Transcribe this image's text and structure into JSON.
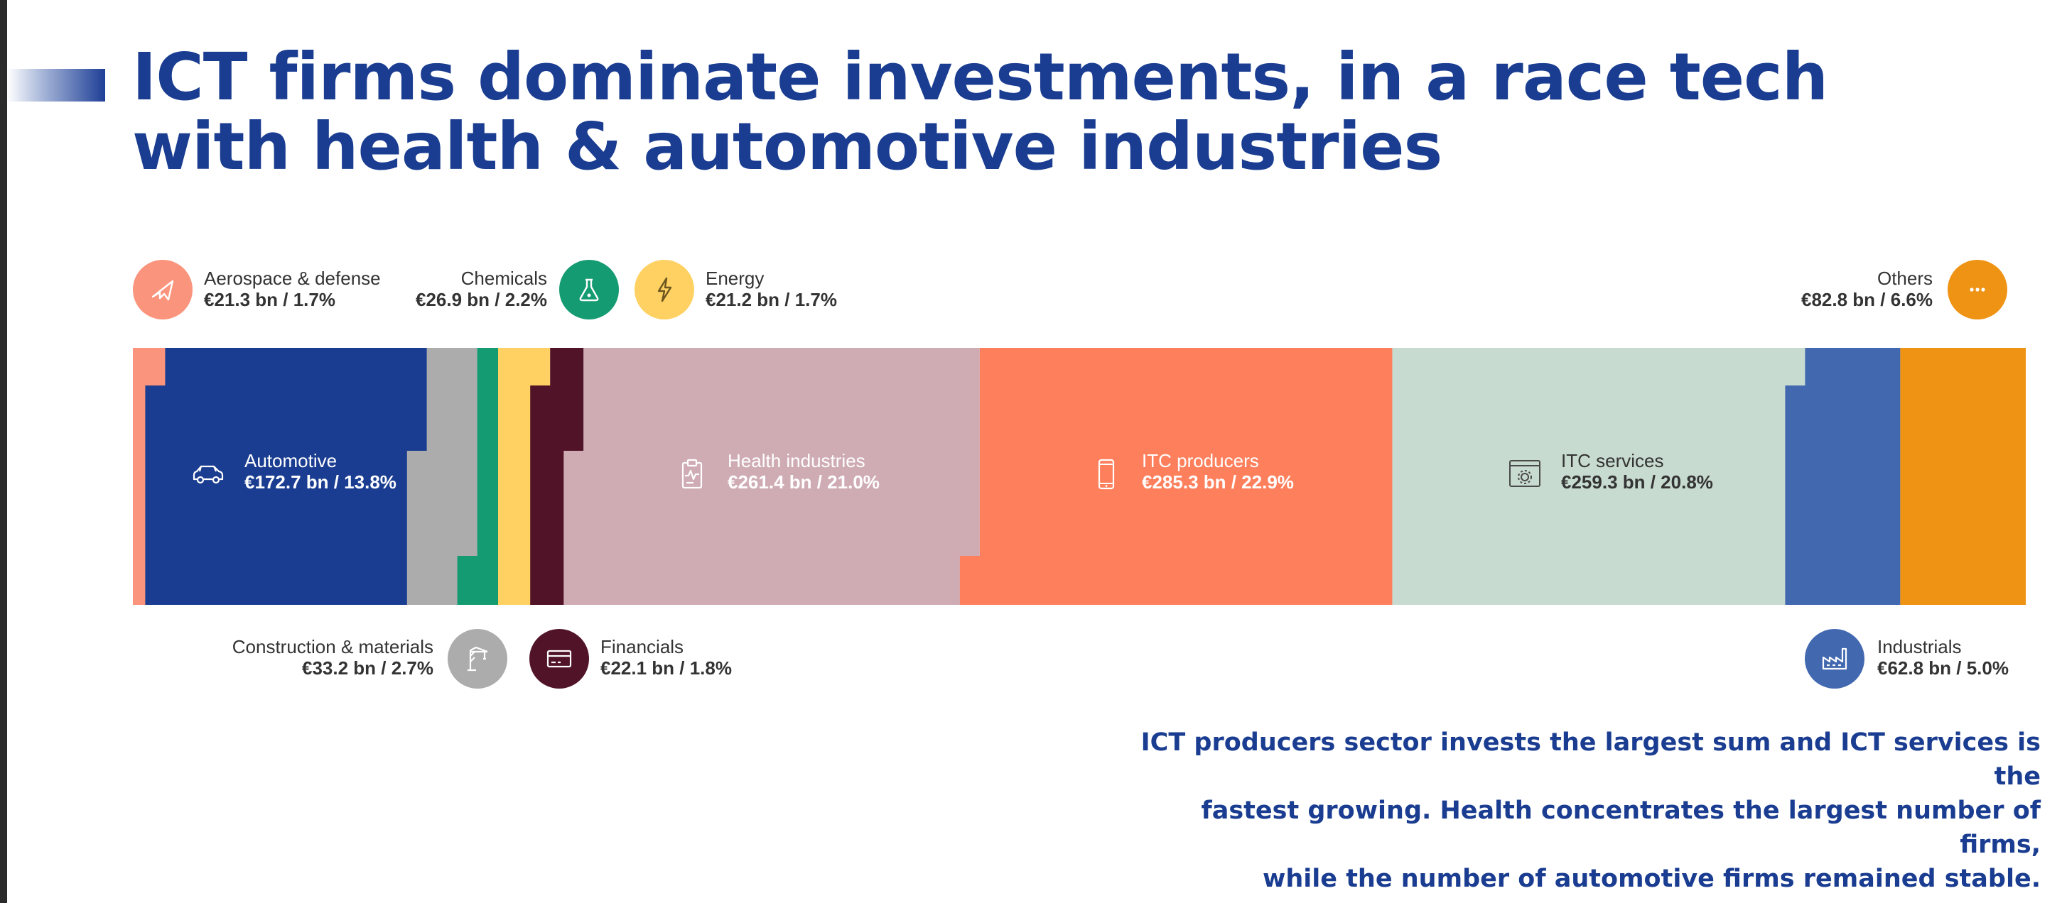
{
  "title": {
    "line1": "ICT firms dominate investments, in a race tech",
    "line2": "with health & automotive industries"
  },
  "footnote": {
    "line1": "ICT producers sector invests the largest sum and ICT services is the",
    "line2": "fastest growing. Health concentrates the largest number of firms,",
    "line3": "while the number of automotive firms remained stable."
  },
  "colors": {
    "title": "#1a3d91",
    "aerospace": "#fb947c",
    "automotive": "#1a3d91",
    "chemicals": "#149b71",
    "construction": "#acacac",
    "energy": "#fed162",
    "financials": "#511327",
    "health": "#cfacb4",
    "itc_producers": "#fe7f5c",
    "itc_services": "#c8dbd0",
    "industrials": "#4268b0",
    "others": "#ee9313"
  },
  "chart_data": {
    "type": "bar",
    "subtype": "stacked-100-percent-marimekko",
    "unit": "€ bn",
    "segments": [
      {
        "id": "aerospace",
        "name": "Aerospace & defense",
        "value": 21.3,
        "share": 1.7,
        "value_label": "€21.3 bn / 1.7%",
        "icon": "airplane-icon"
      },
      {
        "id": "automotive",
        "name": "Automotive",
        "value": 172.7,
        "share": 13.8,
        "value_label": "€172.7 bn / 13.8%",
        "icon": "car-icon"
      },
      {
        "id": "construction",
        "name": "Construction & materials",
        "value": 33.2,
        "share": 2.7,
        "value_label": "€33.2 bn / 2.7%",
        "icon": "crane-icon"
      },
      {
        "id": "chemicals",
        "name": "Chemicals",
        "value": 26.9,
        "share": 2.2,
        "value_label": "€26.9 bn / 2.2%",
        "icon": "flask-icon"
      },
      {
        "id": "energy",
        "name": "Energy",
        "value": 21.2,
        "share": 1.7,
        "value_label": "€21.2 bn / 1.7%",
        "icon": "lightning-icon"
      },
      {
        "id": "financials",
        "name": "Financials",
        "value": 22.1,
        "share": 1.8,
        "value_label": "€22.1 bn / 1.8%",
        "icon": "credit-card-icon"
      },
      {
        "id": "health",
        "name": "Health industries",
        "value": 261.4,
        "share": 21.0,
        "value_label": "€261.4 bn / 21.0%",
        "icon": "clipboard-pulse-icon"
      },
      {
        "id": "itc_producers",
        "name": "ITC producers",
        "value": 285.3,
        "share": 22.9,
        "value_label": "€285.3 bn / 22.9%",
        "icon": "smartphone-icon"
      },
      {
        "id": "itc_services",
        "name": "ITC services",
        "value": 259.3,
        "share": 20.8,
        "value_label": "€259.3 bn / 20.8%",
        "icon": "browser-gear-icon"
      },
      {
        "id": "industrials",
        "name": "Industrials",
        "value": 62.8,
        "share": 5.0,
        "value_label": "€62.8 bn / 5.0%",
        "icon": "factory-icon"
      },
      {
        "id": "others",
        "name": "Others",
        "value": 82.8,
        "share": 6.6,
        "value_label": "€82.8 bn / 6.6%",
        "icon": "ellipsis-icon"
      }
    ]
  }
}
